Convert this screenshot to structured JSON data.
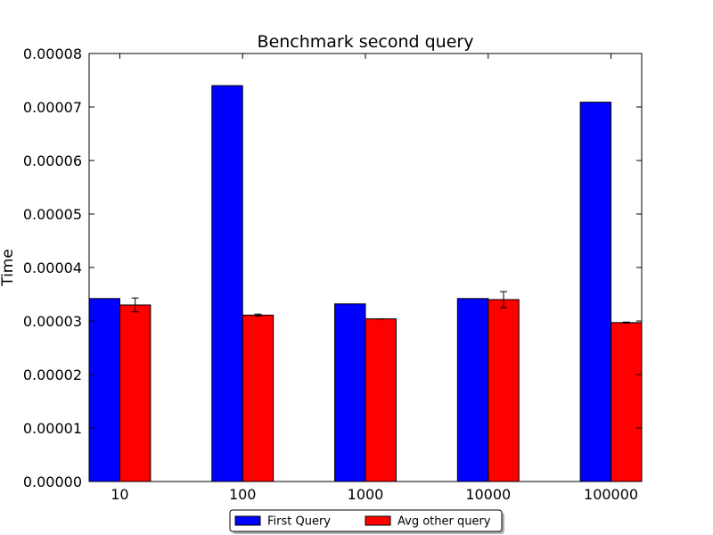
{
  "chart_data": {
    "type": "bar",
    "title": "Benchmark second query",
    "xlabel": "",
    "ylabel": "Time",
    "categories": [
      "10",
      "100",
      "1000",
      "10000",
      "100000"
    ],
    "series": [
      {
        "name": "First Query",
        "color": "#0000ff",
        "values": [
          3.42e-05,
          7.4e-05,
          3.32e-05,
          3.42e-05,
          7.09e-05
        ]
      },
      {
        "name": "Avg other query",
        "color": "#ff0000",
        "values": [
          3.3e-05,
          3.11e-05,
          3.04e-05,
          3.4e-05,
          2.97e-05
        ],
        "error": [
          1.3e-06,
          2e-07,
          0.0,
          1.5e-06,
          1e-07
        ]
      }
    ],
    "ylim": [
      0,
      8e-05
    ],
    "yticks": [
      0,
      1e-05,
      2e-05,
      3e-05,
      4e-05,
      5e-05,
      6e-05,
      7e-05,
      8e-05
    ],
    "ytick_labels": [
      "0.00000",
      "0.00001",
      "0.00002",
      "0.00003",
      "0.00004",
      "0.00005",
      "0.00006",
      "0.00007",
      "0.00008"
    ],
    "grid": false,
    "legend_position": "bottom-center"
  }
}
